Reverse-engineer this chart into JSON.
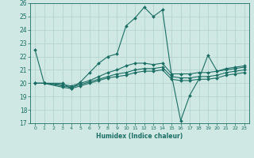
{
  "background_color": "#d0e8e4",
  "grid_color": "#aed0cc",
  "line_color": "#1a6e64",
  "xlabel": "Humidex (Indice chaleur)",
  "xlim": [
    -0.5,
    23.5
  ],
  "ylim": [
    17,
    26
  ],
  "yticks": [
    17,
    18,
    19,
    20,
    21,
    22,
    23,
    24,
    25,
    26
  ],
  "xticks": [
    0,
    1,
    2,
    3,
    4,
    5,
    6,
    7,
    8,
    9,
    10,
    11,
    12,
    13,
    14,
    15,
    16,
    17,
    18,
    19,
    20,
    21,
    22,
    23
  ],
  "lines": [
    {
      "x": [
        0,
        1,
        3,
        4,
        5,
        6,
        7,
        8,
        9,
        10,
        11,
        12,
        13,
        14,
        15,
        16,
        17,
        18,
        19,
        20,
        21,
        22,
        23
      ],
      "y": [
        22.5,
        20.0,
        20.0,
        19.6,
        20.1,
        20.8,
        21.5,
        22.0,
        22.2,
        24.3,
        24.9,
        25.7,
        25.0,
        25.5,
        20.6,
        17.2,
        19.1,
        20.3,
        22.1,
        20.9,
        21.1,
        21.2,
        21.3
      ]
    },
    {
      "x": [
        0,
        1,
        3,
        4,
        5,
        6,
        7,
        8,
        9,
        10,
        11,
        12,
        13,
        14,
        15,
        16,
        17,
        18,
        19,
        20,
        21,
        22,
        23
      ],
      "y": [
        20.0,
        20.0,
        19.9,
        19.8,
        20.0,
        20.2,
        20.5,
        20.8,
        21.0,
        21.3,
        21.5,
        21.5,
        21.4,
        21.5,
        20.7,
        20.7,
        20.7,
        20.8,
        20.8,
        20.9,
        21.0,
        21.1,
        21.2
      ]
    },
    {
      "x": [
        0,
        1,
        3,
        4,
        5,
        6,
        7,
        8,
        9,
        10,
        11,
        12,
        13,
        14,
        15,
        16,
        17,
        18,
        19,
        20,
        21,
        22,
        23
      ],
      "y": [
        20.0,
        20.0,
        19.8,
        19.7,
        19.9,
        20.1,
        20.3,
        20.5,
        20.7,
        20.8,
        21.0,
        21.1,
        21.1,
        21.2,
        20.5,
        20.4,
        20.4,
        20.5,
        20.5,
        20.6,
        20.8,
        20.9,
        21.0
      ]
    },
    {
      "x": [
        0,
        1,
        3,
        4,
        5,
        6,
        7,
        8,
        9,
        10,
        11,
        12,
        13,
        14,
        15,
        16,
        17,
        18,
        19,
        20,
        21,
        22,
        23
      ],
      "y": [
        20.0,
        20.0,
        19.7,
        19.6,
        19.8,
        20.0,
        20.2,
        20.4,
        20.5,
        20.6,
        20.8,
        20.9,
        20.9,
        21.0,
        20.3,
        20.2,
        20.2,
        20.3,
        20.3,
        20.4,
        20.6,
        20.7,
        20.8
      ]
    }
  ]
}
